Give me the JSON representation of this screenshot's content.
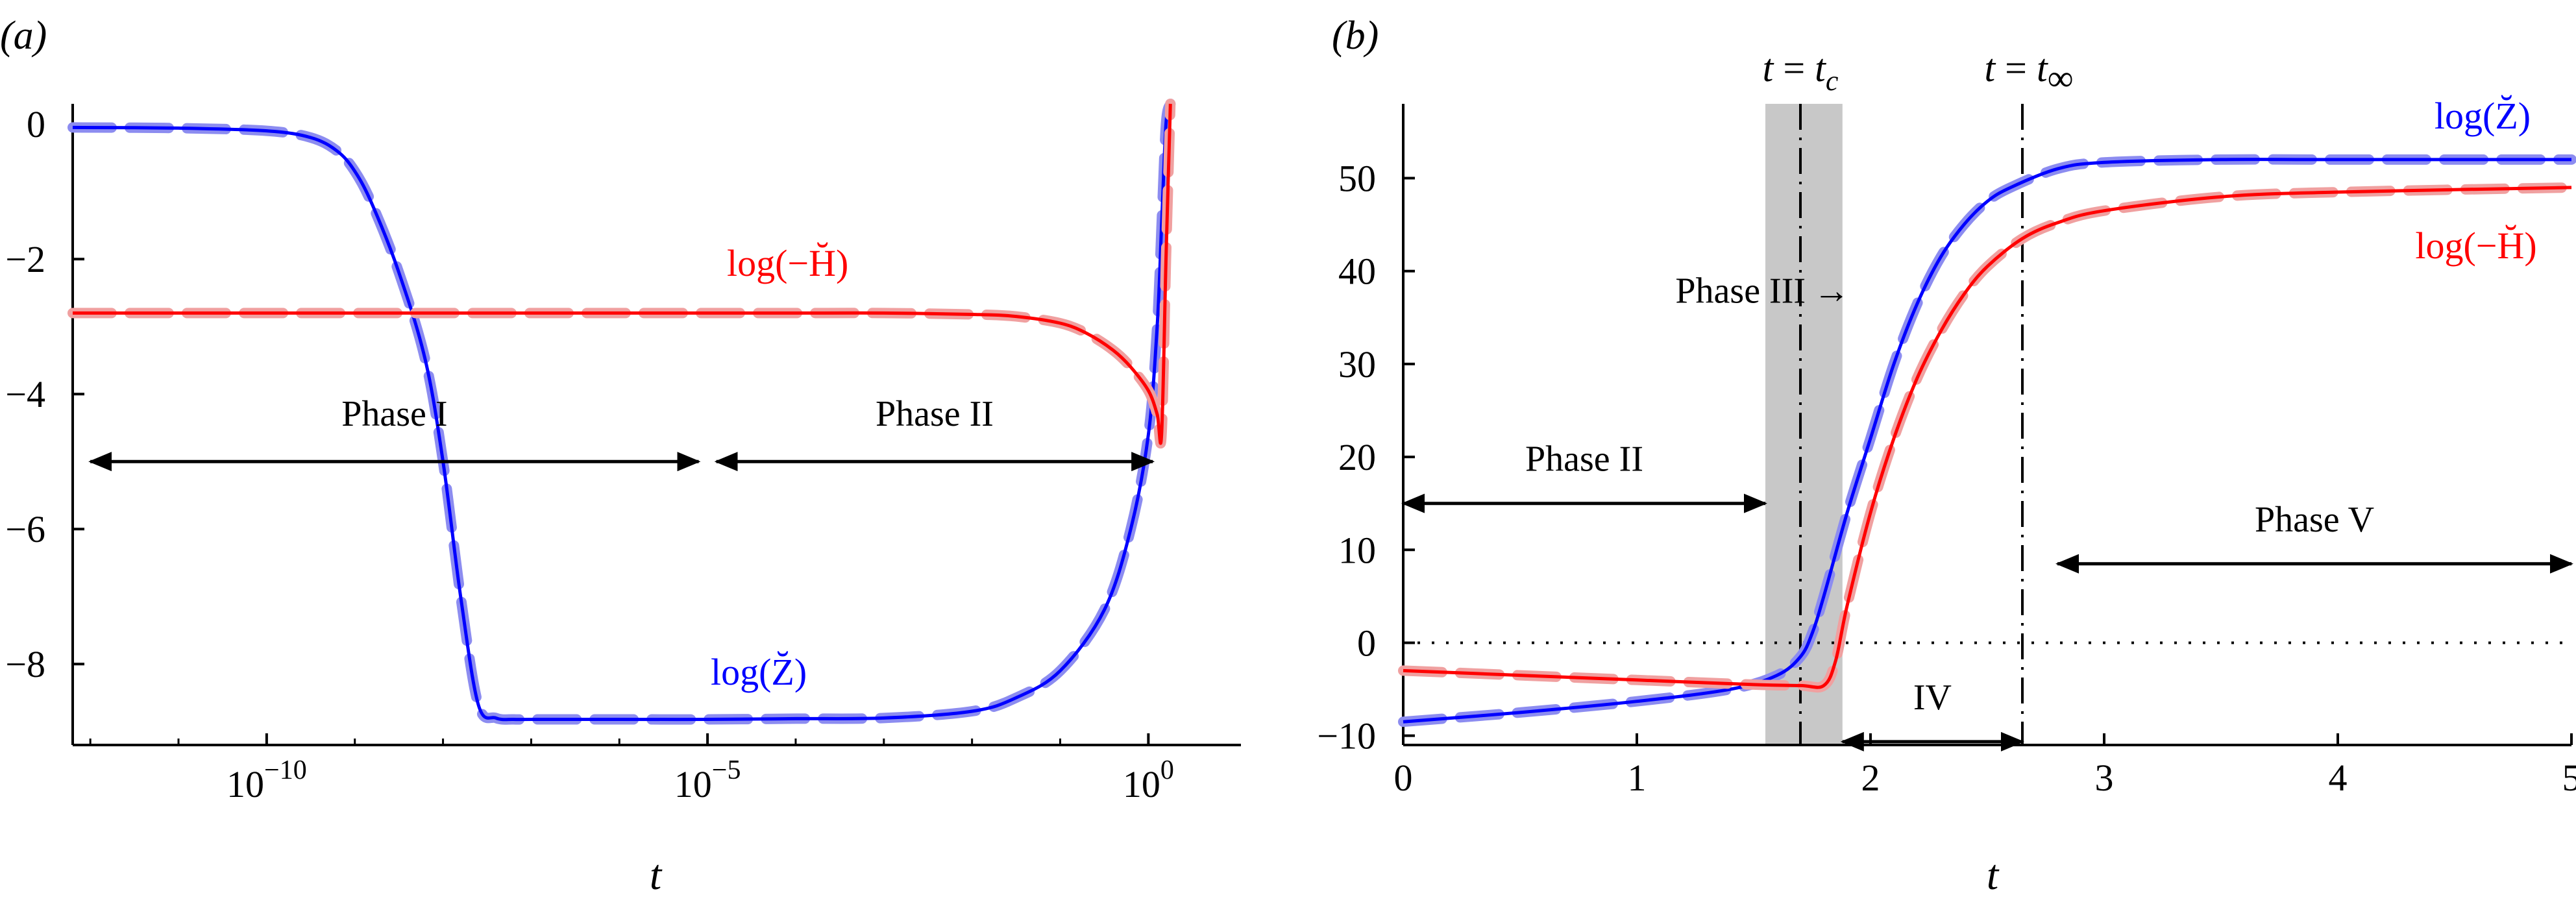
{
  "chart_data": [
    {
      "panel": "a",
      "panel_label": "(a)",
      "type": "line",
      "xscale": "log",
      "xlabel": "t",
      "xlim_log10": [
        -12.2,
        1.05
      ],
      "ylim": [
        -9.2,
        0.3
      ],
      "x_ticks": [
        {
          "log10": -10,
          "base": "10",
          "exp": "−10"
        },
        {
          "log10": -5,
          "base": "10",
          "exp": "−5"
        },
        {
          "log10": 0,
          "base": "10",
          "exp": "0"
        }
      ],
      "y_ticks": [
        {
          "value": 0,
          "label": "0"
        },
        {
          "value": -2,
          "label": "−2"
        },
        {
          "value": -4,
          "label": "−4"
        },
        {
          "value": -6,
          "label": "−6"
        },
        {
          "value": -8,
          "label": "−8"
        }
      ],
      "series": [
        {
          "name": "log(Z̆)",
          "label": "log(Z̆)",
          "color": "#0000ff",
          "shadow_color": "#8c8cf0",
          "x_log10": [
            -12.2,
            -11,
            -10,
            -9.5,
            -9.2,
            -9,
            -8.8,
            -8.5,
            -8.2,
            -8.0,
            -7.8,
            -7.6,
            -7.4,
            -7.2,
            -7.0,
            -6.5,
            -6,
            -5,
            -4,
            -3,
            -2,
            -1.5,
            -1,
            -0.5,
            -0.2,
            0,
            0.1,
            0.15,
            0.2,
            0.25
          ],
          "y": [
            -0.05,
            -0.06,
            -0.1,
            -0.2,
            -0.4,
            -0.7,
            -1.2,
            -2.2,
            -3.5,
            -5.0,
            -7.0,
            -8.6,
            -8.8,
            -8.82,
            -8.82,
            -8.82,
            -8.82,
            -8.82,
            -8.81,
            -8.8,
            -8.7,
            -8.5,
            -8.1,
            -7.2,
            -6.0,
            -4.6,
            -3.0,
            -1.5,
            0.0,
            0.3
          ]
        },
        {
          "name": "log(−H̆)",
          "label": "log(−H̆)",
          "color": "#ff0000",
          "shadow_color": "#f0a0a0",
          "x_log10": [
            -12.2,
            -10,
            -8,
            -6,
            -4,
            -3,
            -2,
            -1.5,
            -1,
            -0.7,
            -0.4,
            -0.2,
            0,
            0.1,
            0.15,
            0.2,
            0.25
          ],
          "y": [
            -2.8,
            -2.8,
            -2.8,
            -2.8,
            -2.8,
            -2.8,
            -2.82,
            -2.85,
            -2.95,
            -3.1,
            -3.35,
            -3.6,
            -3.95,
            -4.3,
            -4.6,
            -2.0,
            0.3
          ]
        }
      ],
      "annotations": [
        {
          "text": "Phase I",
          "arrow_x_log10": [
            -12,
            -5.1
          ],
          "y": -5
        },
        {
          "text": "Phase II",
          "arrow_x_log10": [
            -4.9,
            0.05
          ],
          "y": -5
        }
      ]
    },
    {
      "panel": "b",
      "panel_label": "(b)",
      "type": "line",
      "xlabel": "t",
      "xlim": [
        0,
        5
      ],
      "ylim": [
        -11,
        58
      ],
      "x_ticks": [
        0,
        1,
        2,
        3,
        4,
        5
      ],
      "y_ticks": [
        -10,
        0,
        10,
        20,
        30,
        40,
        50
      ],
      "shaded_region": [
        1.55,
        1.88
      ],
      "vertical_lines": [
        {
          "x": 1.7,
          "label_lhs": "t",
          "label_rhs": "t",
          "sub": "c",
          "eq": " = "
        },
        {
          "x": 2.65,
          "label_lhs": "t",
          "label_rhs": "t",
          "sub": "∞",
          "eq": " = "
        }
      ],
      "horizontal_line": 0,
      "series": [
        {
          "name": "log(Z̆)",
          "label": "log(Z̆)",
          "color": "#0000ff",
          "shadow_color": "#8c8cf0",
          "x": [
            0,
            0.5,
            1.0,
            1.4,
            1.6,
            1.7,
            1.75,
            1.8,
            1.9,
            2.0,
            2.1,
            2.2,
            2.3,
            2.4,
            2.5,
            2.6,
            2.8,
            3.0,
            3.5,
            4.0,
            5.0
          ],
          "y": [
            -8.5,
            -7.5,
            -6.3,
            -5.0,
            -3.5,
            -1.5,
            1.0,
            5.0,
            14.0,
            22.0,
            30.0,
            36.5,
            41.5,
            45.0,
            47.5,
            49.0,
            51.0,
            51.7,
            52.0,
            52.0,
            52.0
          ]
        },
        {
          "name": "log(−H̆)",
          "label": "log(−H̆)",
          "color": "#ff0000",
          "shadow_color": "#f0a0a0",
          "x": [
            0,
            0.5,
            1.0,
            1.5,
            1.7,
            1.8,
            1.85,
            1.9,
            2.0,
            2.1,
            2.2,
            2.3,
            2.4,
            2.5,
            2.65,
            2.8,
            3.0,
            3.5,
            4.0,
            5.0
          ],
          "y": [
            -3.0,
            -3.5,
            -4.0,
            -4.5,
            -4.6,
            -4.6,
            -2.0,
            4.0,
            14.0,
            22.0,
            28.5,
            33.5,
            37.5,
            40.5,
            43.5,
            45.2,
            46.5,
            48.0,
            48.5,
            49.0
          ]
        }
      ],
      "annotations": [
        {
          "text": "Phase II",
          "arrow_x": [
            0,
            1.55
          ],
          "y": 15
        },
        {
          "text": "Phase III",
          "arrow_symbol": "→",
          "x": 1.55,
          "y": 38
        },
        {
          "text": "IV",
          "arrow_x": [
            1.88,
            2.65
          ],
          "y": -7.5
        },
        {
          "text": "Phase V",
          "arrow_x": [
            2.8,
            5.0
          ],
          "y": 8.5
        }
      ]
    }
  ]
}
